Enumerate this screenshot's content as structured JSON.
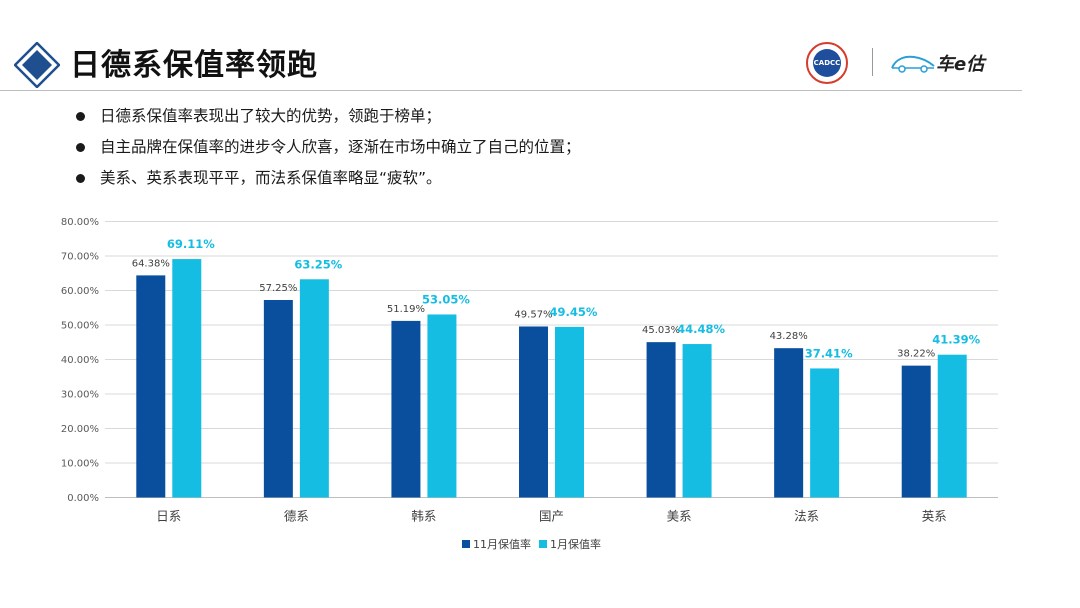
{
  "header": {
    "title": "日德系保值率领跑",
    "logo_badge": "CADCC",
    "brand_text": "车e估"
  },
  "bullets": [
    "日德系保值率表现出了较大的优势，领跑于榜单；",
    "自主品牌在保值率的进步令人欣喜，逐渐在市场中确立了自己的位置；",
    "美系、英系表现平平，而法系保值率略显“疲软”。"
  ],
  "colors": {
    "series1": "#0a4f9e",
    "series2": "#15bde3",
    "title_diamond": "#1f4f8f",
    "grid": "#d9d9d9"
  },
  "chart_data": {
    "type": "bar",
    "categories": [
      "日系",
      "德系",
      "韩系",
      "国产",
      "美系",
      "法系",
      "英系"
    ],
    "series": [
      {
        "name": "11月保值率",
        "values": [
          64.38,
          57.25,
          51.19,
          49.57,
          45.03,
          43.28,
          38.22
        ],
        "labels": [
          "64.38%",
          "57.25%",
          "51.19%",
          "49.57%",
          "45.03%",
          "43.28%",
          "38.22%"
        ]
      },
      {
        "name": "1月保值率",
        "values": [
          69.11,
          63.25,
          53.05,
          49.45,
          44.48,
          37.41,
          41.39
        ],
        "labels": [
          "69.11%",
          "63.25%",
          "53.05%",
          "49.45%",
          "44.48%",
          "37.41%",
          "41.39%"
        ]
      }
    ],
    "yticks": [
      "0.00%",
      "10.00%",
      "20.00%",
      "30.00%",
      "40.00%",
      "50.00%",
      "60.00%",
      "70.00%",
      "80.00%"
    ],
    "ylim": [
      0,
      80
    ],
    "title": "",
    "xlabel": "",
    "ylabel": "",
    "grid": true,
    "legend_position": "bottom"
  }
}
